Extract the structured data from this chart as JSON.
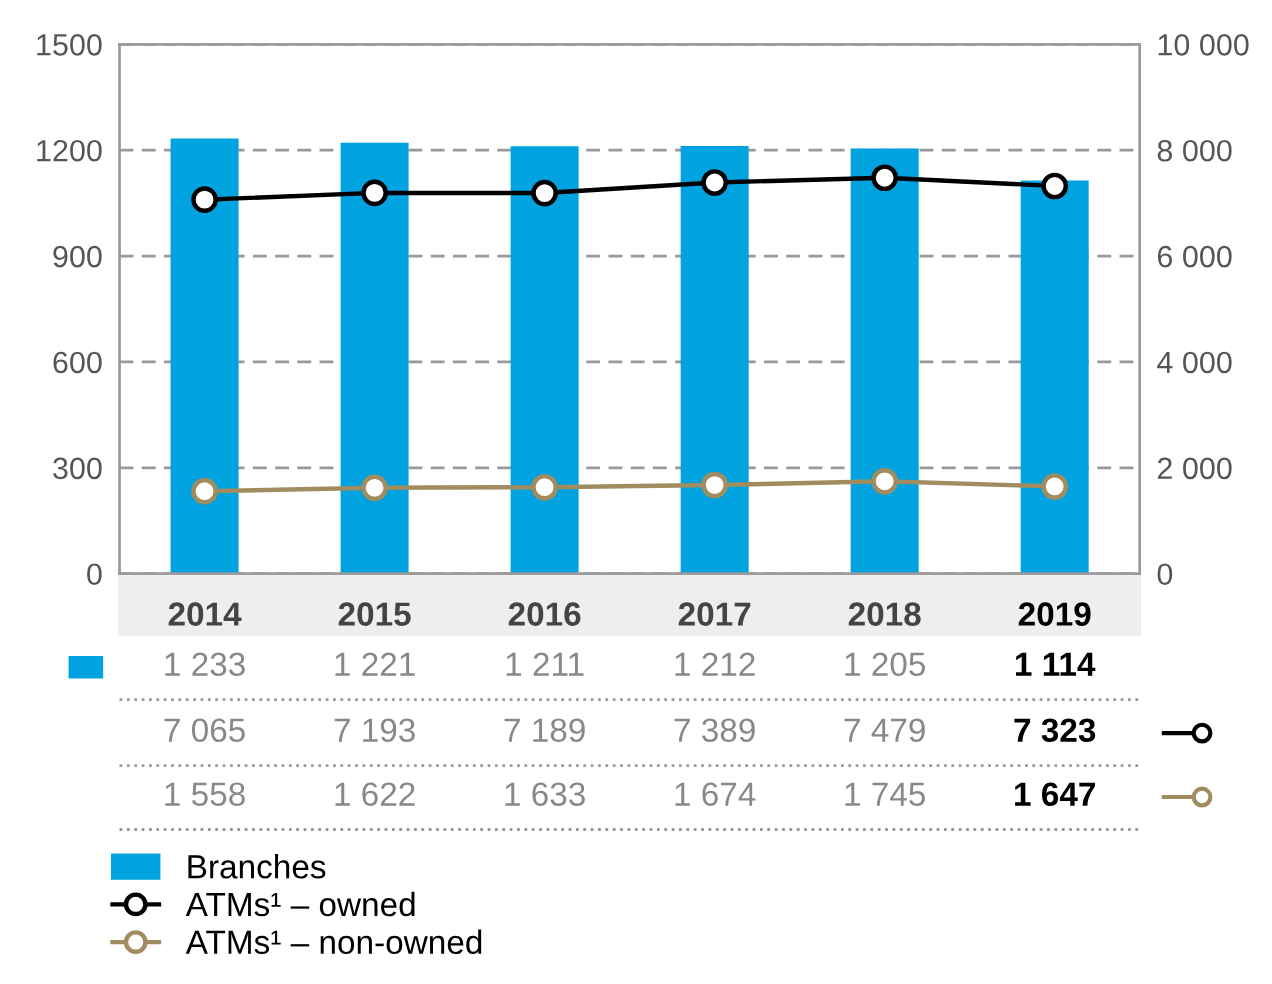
{
  "chart_data": {
    "type": "bar",
    "categories": [
      "2014",
      "2015",
      "2016",
      "2017",
      "2018",
      "2019"
    ],
    "series": [
      {
        "name": "Branches",
        "color": "#00a3e0",
        "values": [
          1233,
          1221,
          1211,
          1212,
          1205,
          1114
        ],
        "value_labels": [
          "1 233",
          "1 221",
          "1 211",
          "1 212",
          "1 205",
          "1 114"
        ]
      },
      {
        "name": "ATMs¹ – owned",
        "type": "line",
        "axis": "y2",
        "color": "#000000",
        "marker": "circle",
        "values": [
          7065,
          7193,
          7189,
          7389,
          7479,
          7323
        ],
        "value_labels": [
          "7 065",
          "7 193",
          "7 189",
          "7 389",
          "7 479",
          "7 323"
        ]
      },
      {
        "name": "ATMs¹ – non-owned",
        "type": "line",
        "axis": "y2",
        "color": "#a08c5f",
        "marker": "circle",
        "values": [
          1558,
          1622,
          1633,
          1674,
          1745,
          1647
        ],
        "value_labels": [
          "1 558",
          "1 622",
          "1 633",
          "1 674",
          "1 745",
          "1 647"
        ]
      }
    ],
    "ylim": [
      0,
      1500
    ],
    "yticks": [
      0,
      300,
      600,
      900,
      1200,
      1500
    ],
    "y2lim": [
      0,
      10000
    ],
    "y2ticks": [
      0,
      {
        "value": 2000,
        "label": "2 000"
      },
      {
        "value": 4000,
        "label": "4 000"
      },
      {
        "value": 6000,
        "label": "6 000"
      },
      {
        "value": 8000,
        "label": "8 000"
      },
      {
        "value": 10000,
        "label": "10 000"
      }
    ],
    "grid": "y",
    "legend": "bottom"
  }
}
